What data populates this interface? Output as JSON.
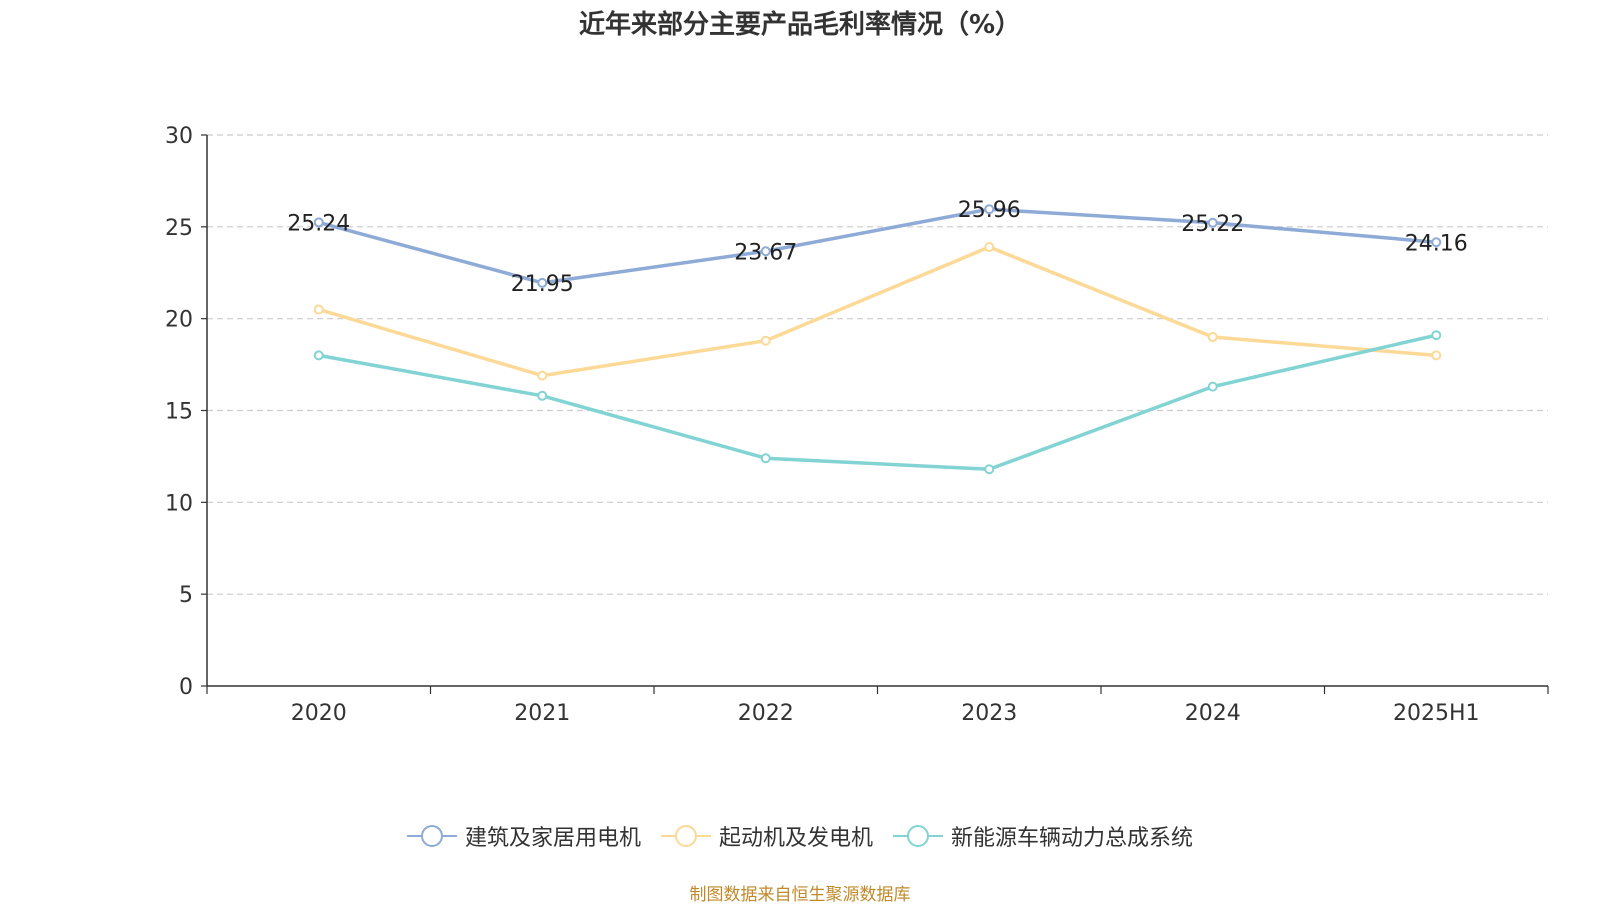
{
  "chart_data": {
    "type": "line",
    "title": "近年来部分主要产品毛利率情况（%）",
    "categories": [
      "2020",
      "2021",
      "2022",
      "2023",
      "2024",
      "2025H1"
    ],
    "ylim": [
      0,
      30
    ],
    "yticks": [
      0,
      5,
      10,
      15,
      20,
      25,
      30
    ],
    "grid": true,
    "legend_position": "bottom",
    "series": [
      {
        "name": "建筑及家居用电机",
        "color": "#8eaad6",
        "values": [
          25.24,
          21.95,
          23.67,
          25.96,
          25.22,
          24.16
        ],
        "labels": [
          "25.24",
          "21.95",
          "23.67",
          "25.96",
          "25.22",
          "24.16"
        ]
      },
      {
        "name": "起动机及发电机",
        "color": "#fcd996",
        "values": [
          20.5,
          16.9,
          18.8,
          23.9,
          19.0,
          18.0
        ],
        "labels": []
      },
      {
        "name": "新能源车辆动力总成系统",
        "color": "#82d3d3",
        "values": [
          18.0,
          15.8,
          12.4,
          11.8,
          16.3,
          19.1
        ],
        "labels": []
      }
    ]
  },
  "source": {
    "text": "制图数据来自恒生聚源数据库",
    "color": "#c08a2a"
  }
}
